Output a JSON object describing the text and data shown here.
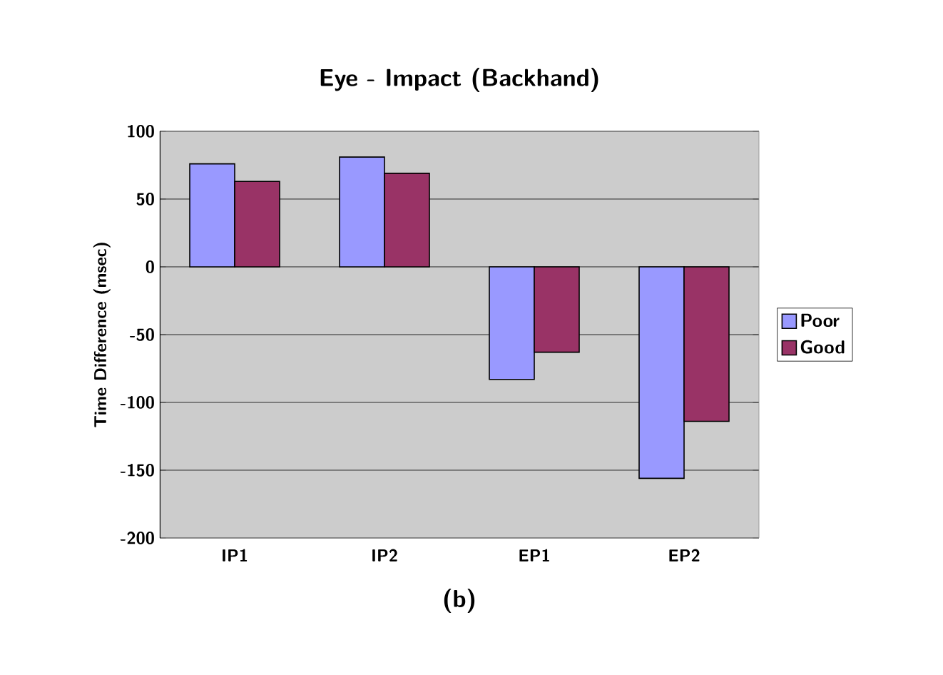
{
  "chart_data": {
    "type": "bar",
    "title": "Eye - Impact (Backhand)",
    "xlabel": "(b)",
    "ylabel": "Time Difference (msec)",
    "categories": [
      "IP1",
      "IP2",
      "EP1",
      "EP2"
    ],
    "series": [
      {
        "name": "Poor",
        "color": "#9999ff",
        "values": [
          76,
          81,
          -83,
          -156
        ]
      },
      {
        "name": "Good",
        "color": "#993366",
        "values": [
          63,
          69,
          -63,
          -114
        ]
      }
    ],
    "ylim": [
      -200,
      100
    ],
    "yticks": [
      -200,
      -150,
      -100,
      -50,
      0,
      50,
      100
    ],
    "grid": "y",
    "legend": "right"
  }
}
